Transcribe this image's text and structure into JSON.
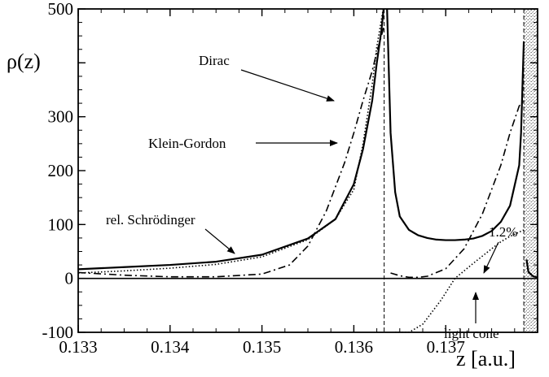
{
  "chart_data": {
    "type": "line",
    "title": "",
    "xlabel": "z [a.u.]",
    "ylabel": "ρ(z)",
    "xlim": [
      0.133,
      0.138
    ],
    "ylim": [
      -100,
      500
    ],
    "x_ticks": [
      "0.133",
      "0.134",
      "0.135",
      "0.136",
      "0.137"
    ],
    "y_ticks": [
      "-100",
      "0",
      "100",
      "200",
      "300",
      "500"
    ],
    "grid": false,
    "shaded_region": {
      "x_from": 0.13785,
      "x_to": 0.138
    },
    "vertical_lines": [
      0.13633,
      0.13785
    ],
    "annotations": [
      {
        "text": "Dirac",
        "points_to": "dash-dot curve"
      },
      {
        "text": "Klein-Gordon",
        "points_to": "dotted curve"
      },
      {
        "text": "rel. Schrödinger",
        "points_to": "solid curve"
      },
      {
        "text": "1.2%",
        "points_to": "solid curve tail"
      },
      {
        "text": "light cone",
        "points_to": "vertical line at 0.13785"
      }
    ],
    "series": [
      {
        "line_style": "solid",
        "x": [
          0.133,
          0.1335,
          0.134,
          0.1345,
          0.135,
          0.1355,
          0.1358,
          0.136,
          0.1361,
          0.1362,
          0.13625,
          0.1363,
          0.13633,
          0.13636,
          0.1364,
          0.13645,
          0.1365,
          0.1366,
          0.1367,
          0.1368,
          0.1369,
          0.137,
          0.1371,
          0.1372,
          0.1373,
          0.1374,
          0.1375,
          0.1376,
          0.1377,
          0.1378,
          0.13782,
          0.13785,
          0.13788,
          0.1379,
          0.13795,
          0.138
        ],
        "y": [
          17,
          21,
          25,
          31,
          44,
          74,
          110,
          175,
          240,
          330,
          400,
          460,
          510,
          510,
          270,
          160,
          115,
          90,
          80,
          75,
          72,
          71,
          71,
          72,
          74,
          79,
          88,
          105,
          135,
          210,
          270,
          440,
          35,
          12,
          4,
          2
        ]
      },
      {
        "line_style": "dotted",
        "x": [
          0.133,
          0.1335,
          0.134,
          0.1345,
          0.135,
          0.1355,
          0.1358,
          0.136,
          0.1361,
          0.1362,
          0.13625,
          0.1363,
          0.13633,
          0.13645,
          0.1366,
          0.13675,
          0.13695,
          0.1371,
          0.1373,
          0.1375,
          0.1376,
          0.1377,
          0.13785
        ],
        "y": [
          10,
          14,
          19,
          26,
          40,
          72,
          110,
          165,
          250,
          360,
          430,
          480,
          510,
          -100,
          -100,
          -85,
          -40,
          0,
          28,
          55,
          68,
          78,
          90
        ]
      },
      {
        "line_style": "dashdot",
        "x": [
          0.133,
          0.1335,
          0.134,
          0.1345,
          0.135,
          0.1353,
          0.1355,
          0.1357,
          0.1359,
          0.136,
          0.1361,
          0.1362,
          0.13625,
          0.1363,
          0.13633,
          0.1364,
          0.1365,
          0.1366,
          0.1367,
          0.1368,
          0.137,
          0.1372,
          0.1374,
          0.1376,
          0.1377,
          0.1378,
          0.13785
        ],
        "y": [
          11,
          6,
          3,
          3,
          8,
          25,
          60,
          125,
          215,
          270,
          330,
          385,
          420,
          450,
          470,
          10,
          5,
          2,
          2,
          4,
          18,
          55,
          120,
          210,
          270,
          320,
          330
        ]
      }
    ]
  }
}
